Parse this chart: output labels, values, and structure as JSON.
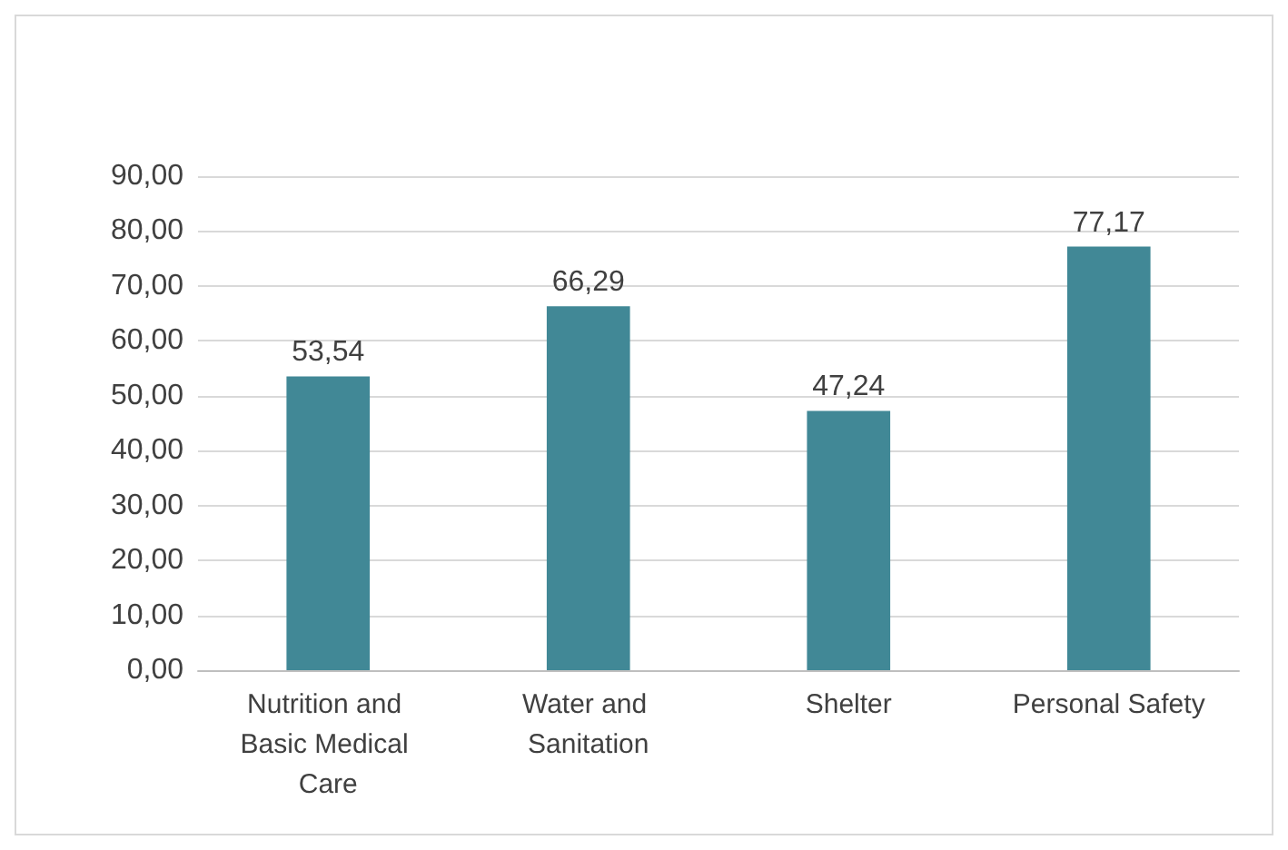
{
  "chart_data": {
    "type": "bar",
    "categories": [
      "Nutrition and Basic Medical Care",
      "Water and Sanitation",
      "Shelter",
      "Personal Safety"
    ],
    "values": [
      53.54,
      66.29,
      47.24,
      77.17
    ],
    "value_labels": [
      "53,54",
      "66,29",
      "47,24",
      "77,17"
    ],
    "color": "#418896",
    "ylim": [
      0,
      90
    ],
    "yticks": [
      {
        "value": 0,
        "label": "0,00"
      },
      {
        "value": 10,
        "label": "10,00"
      },
      {
        "value": 20,
        "label": "20,00"
      },
      {
        "value": 30,
        "label": "30,00"
      },
      {
        "value": 40,
        "label": "40,00"
      },
      {
        "value": 50,
        "label": "50,00"
      },
      {
        "value": 60,
        "label": "60,00"
      },
      {
        "value": 70,
        "label": "70,00"
      },
      {
        "value": 80,
        "label": "80,00"
      },
      {
        "value": 90,
        "label": "90,00"
      }
    ],
    "grid": "y"
  }
}
